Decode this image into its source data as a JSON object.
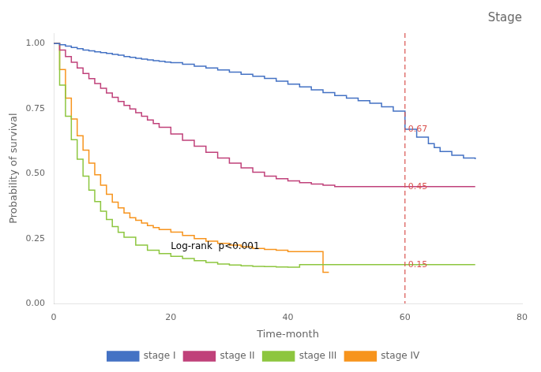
{
  "chart_data": {
    "type": "line",
    "title": "Stage",
    "x_label": "Time-month",
    "y_label": "Probability of survival",
    "xlim": [
      0,
      80
    ],
    "ylim": [
      0.0,
      1.04
    ],
    "xticks": [
      0,
      20,
      40,
      60,
      80
    ],
    "yticks": [
      {
        "value": 0.0,
        "label": "0.00"
      },
      0.25,
      {
        "value": 0.5,
        "label": "0.50"
      },
      0.75,
      {
        "value": 1.0,
        "label": "1.00"
      }
    ],
    "grid": false,
    "legend": "bottom",
    "line_style": "steps",
    "series": [
      {
        "name": "stage I",
        "color": "#4472C4",
        "x": [
          0,
          1,
          2,
          3,
          4,
          5,
          6,
          7,
          8,
          9,
          10,
          11,
          12,
          13,
          14,
          15,
          16,
          17,
          18,
          19,
          20,
          22,
          24,
          26,
          28,
          30,
          32,
          34,
          36,
          38,
          40,
          42,
          44,
          46,
          48,
          50,
          52,
          54,
          56,
          58,
          60,
          62,
          64,
          65,
          66,
          68,
          70,
          72
        ],
        "values": [
          1.0,
          0.995,
          0.99,
          0.985,
          0.98,
          0.975,
          0.972,
          0.968,
          0.965,
          0.962,
          0.958,
          0.955,
          0.95,
          0.947,
          0.943,
          0.94,
          0.937,
          0.934,
          0.932,
          0.929,
          0.926,
          0.92,
          0.913,
          0.906,
          0.898,
          0.89,
          0.882,
          0.874,
          0.866,
          0.855,
          0.844,
          0.833,
          0.822,
          0.811,
          0.8,
          0.79,
          0.78,
          0.77,
          0.757,
          0.74,
          0.67,
          0.64,
          0.615,
          0.6,
          0.585,
          0.57,
          0.56,
          0.555
        ]
      },
      {
        "name": "stage II",
        "color": "#C0417A",
        "x": [
          0,
          1,
          2,
          3,
          4,
          5,
          6,
          7,
          8,
          9,
          10,
          11,
          12,
          13,
          14,
          15,
          16,
          17,
          18,
          20,
          22,
          24,
          26,
          28,
          30,
          32,
          34,
          36,
          38,
          40,
          42,
          44,
          46,
          48,
          50,
          52,
          54,
          55,
          56,
          57,
          58,
          60,
          72
        ],
        "values": [
          1.0,
          0.975,
          0.95,
          0.928,
          0.906,
          0.885,
          0.865,
          0.846,
          0.828,
          0.81,
          0.793,
          0.777,
          0.762,
          0.748,
          0.734,
          0.72,
          0.706,
          0.692,
          0.678,
          0.652,
          0.628,
          0.605,
          0.582,
          0.56,
          0.54,
          0.522,
          0.505,
          0.49,
          0.48,
          0.472,
          0.465,
          0.46,
          0.455,
          0.45,
          0.45,
          0.45,
          0.45,
          0.45,
          0.45,
          0.45,
          0.45,
          0.45,
          0.45
        ]
      },
      {
        "name": "stage III",
        "color": "#8DC63F",
        "x": [
          0,
          1,
          2,
          3,
          4,
          5,
          6,
          7,
          8,
          9,
          10,
          11,
          12,
          14,
          16,
          18,
          20,
          22,
          24,
          26,
          28,
          30,
          32,
          34,
          36,
          38,
          40,
          42,
          44,
          46,
          48,
          72
        ],
        "values": [
          1.0,
          0.84,
          0.72,
          0.63,
          0.555,
          0.49,
          0.436,
          0.392,
          0.355,
          0.323,
          0.296,
          0.274,
          0.255,
          0.225,
          0.205,
          0.192,
          0.182,
          0.173,
          0.165,
          0.158,
          0.152,
          0.148,
          0.145,
          0.143,
          0.142,
          0.141,
          0.14,
          0.15,
          0.15,
          0.15,
          0.15,
          0.15
        ]
      },
      {
        "name": "stage IV",
        "color": "#F7941D",
        "x": [
          0,
          1,
          2,
          3,
          4,
          5,
          6,
          7,
          8,
          9,
          10,
          11,
          12,
          13,
          14,
          15,
          16,
          17,
          18,
          20,
          22,
          24,
          26,
          28,
          30,
          32,
          34,
          36,
          38,
          40,
          42,
          44,
          46,
          47
        ],
        "values": [
          1.0,
          0.9,
          0.79,
          0.71,
          0.645,
          0.59,
          0.54,
          0.495,
          0.455,
          0.42,
          0.39,
          0.368,
          0.348,
          0.33,
          0.32,
          0.31,
          0.3,
          0.292,
          0.285,
          0.275,
          0.262,
          0.25,
          0.24,
          0.232,
          0.225,
          0.218,
          0.212,
          0.208,
          0.205,
          0.2,
          0.2,
          0.2,
          0.12,
          0.12
        ]
      }
    ],
    "vlines": [
      {
        "x": 60,
        "color": "#d9534f",
        "line_style": "dashed"
      }
    ],
    "annotations": [
      {
        "x": 60,
        "y": 0.67,
        "label": "0.67",
        "color": "#d9534f"
      },
      {
        "x": 60,
        "y": 0.45,
        "label": "0.45",
        "color": "#d9534f"
      },
      {
        "x": 60,
        "y": 0.15,
        "label": "0.15",
        "color": "#d9534f"
      },
      {
        "label": "Log-rank  p<0.001"
      }
    ]
  }
}
